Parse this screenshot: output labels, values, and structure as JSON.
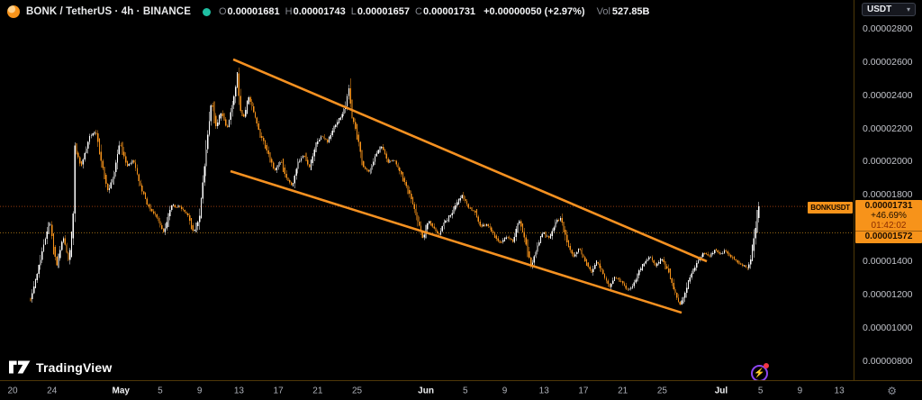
{
  "header": {
    "symbol_title": "BONK / TetherUS · 4h · BINANCE",
    "market_status": "open",
    "ohlc_fields": [
      {
        "label": "O",
        "value": "0.00001681"
      },
      {
        "label": "H",
        "value": "0.00001743"
      },
      {
        "label": "L",
        "value": "0.00001657"
      },
      {
        "label": "C",
        "value": "0.00001731"
      }
    ],
    "change_text": "+0.00000050 (+2.97%)",
    "volume_label": "Vol",
    "volume_value": "527.85B"
  },
  "price_scale": {
    "currency_button": "USDT",
    "chevron": "▾",
    "ticks": [
      {
        "label": "0.00002800",
        "p8": 2800
      },
      {
        "label": "0.00002600",
        "p8": 2600
      },
      {
        "label": "0.00002400",
        "p8": 2400
      },
      {
        "label": "0.00002200",
        "p8": 2200
      },
      {
        "label": "0.00002000",
        "p8": 2000
      },
      {
        "label": "0.00001800",
        "p8": 1800
      },
      {
        "label": "0.00001400",
        "p8": 1400
      },
      {
        "label": "0.00001200",
        "p8": 1200
      },
      {
        "label": "0.00001000",
        "p8": 1000
      },
      {
        "label": "0.00000800",
        "p8": 800
      }
    ],
    "settings_icon": "⚙"
  },
  "price_label": {
    "price": "0.00001731",
    "change_pct": "+46.69%",
    "countdown": "01:42:02",
    "alert_price": "0.00001572"
  },
  "symbol_tag": "BONKUSDT",
  "time_axis": {
    "origin_label": "Apr 20",
    "ticks": [
      {
        "label": "20",
        "day": 0,
        "major": false
      },
      {
        "label": "24",
        "day": 4,
        "major": false
      },
      {
        "label": "May",
        "day": 11,
        "major": true
      },
      {
        "label": "5",
        "day": 15,
        "major": false
      },
      {
        "label": "9",
        "day": 19,
        "major": false
      },
      {
        "label": "13",
        "day": 23,
        "major": false
      },
      {
        "label": "17",
        "day": 27,
        "major": false
      },
      {
        "label": "21",
        "day": 31,
        "major": false
      },
      {
        "label": "25",
        "day": 35,
        "major": false
      },
      {
        "label": "Jun",
        "day": 42,
        "major": true
      },
      {
        "label": "5",
        "day": 46,
        "major": false
      },
      {
        "label": "9",
        "day": 50,
        "major": false
      },
      {
        "label": "13",
        "day": 54,
        "major": false
      },
      {
        "label": "17",
        "day": 58,
        "major": false
      },
      {
        "label": "21",
        "day": 62,
        "major": false
      },
      {
        "label": "25",
        "day": 66,
        "major": false
      },
      {
        "label": "Jul",
        "day": 72,
        "major": true
      },
      {
        "label": "5",
        "day": 76,
        "major": false
      },
      {
        "label": "9",
        "day": 80,
        "major": false
      },
      {
        "label": "13",
        "day": 84,
        "major": false
      }
    ]
  },
  "logo": {
    "name": "TradingView"
  },
  "colors": {
    "up_candle": "#ffffff",
    "down_candle": "#f7931a",
    "trendline": "#f59121",
    "price_line_dotted": "#943a0c",
    "alert_line_dotted": "#9c6c14",
    "axis_border": "#4e3808",
    "label_bg": "#f7931a"
  },
  "chart_data": {
    "type": "candlestick",
    "symbol": "BONKUSDT",
    "exchange": "BINANCE",
    "interval": "4h",
    "price_unit": "1e-8 USDT (p8 1731 = 0.00001731)",
    "y_range_p8": [
      680,
      2830
    ],
    "x_unit": "days since Apr 20",
    "x_range_days": [
      0,
      87
    ],
    "ohlc_last": {
      "open": 1681,
      "high": 1743,
      "low": 1657,
      "close": 1731
    },
    "horizontal_lines_p8": [
      {
        "p8": 1731,
        "role": "current-price"
      },
      {
        "p8": 1572,
        "role": "alert-level"
      }
    ],
    "trendlines": [
      {
        "name": "channel-upper",
        "from": {
          "day": 22.42,
          "p8": 2616
        },
        "to": {
          "day": 70.54,
          "p8": 1400
        }
      },
      {
        "name": "channel-lower",
        "from": {
          "day": 22.14,
          "p8": 1943
        },
        "to": {
          "day": 67.98,
          "p8": 1091
        }
      }
    ],
    "path_pivots": [
      [
        1.83,
        1173
      ],
      [
        2.56,
        1346
      ],
      [
        3.75,
        1645
      ],
      [
        4.48,
        1373
      ],
      [
        5.12,
        1552
      ],
      [
        5.67,
        1411
      ],
      [
        6.13,
        1590
      ],
      [
        6.31,
        2095
      ],
      [
        6.95,
        1970
      ],
      [
        7.87,
        2160
      ],
      [
        8.51,
        2176
      ],
      [
        9.06,
        1986
      ],
      [
        9.7,
        1818
      ],
      [
        10.25,
        1916
      ],
      [
        10.89,
        2117
      ],
      [
        11.62,
        1970
      ],
      [
        12.26,
        2008
      ],
      [
        13.08,
        1834
      ],
      [
        13.82,
        1726
      ],
      [
        14.46,
        1683
      ],
      [
        15.37,
        1574
      ],
      [
        16.1,
        1737
      ],
      [
        17.02,
        1726
      ],
      [
        17.75,
        1683
      ],
      [
        18.39,
        1580
      ],
      [
        18.94,
        1645
      ],
      [
        19.58,
        2024
      ],
      [
        20.22,
        2366
      ],
      [
        20.68,
        2214
      ],
      [
        21.23,
        2296
      ],
      [
        21.78,
        2203
      ],
      [
        22.32,
        2333
      ],
      [
        22.69,
        2458
      ],
      [
        22.87,
        2551
      ],
      [
        23.06,
        2323
      ],
      [
        23.51,
        2268
      ],
      [
        23.97,
        2388
      ],
      [
        24.52,
        2296
      ],
      [
        25.07,
        2171
      ],
      [
        25.8,
        2079
      ],
      [
        26.62,
        1943
      ],
      [
        27.26,
        2008
      ],
      [
        27.81,
        1900
      ],
      [
        28.45,
        1856
      ],
      [
        29.0,
        1997
      ],
      [
        29.55,
        2041
      ],
      [
        30.19,
        1965
      ],
      [
        30.74,
        2089
      ],
      [
        31.38,
        2160
      ],
      [
        32.02,
        2117
      ],
      [
        32.66,
        2203
      ],
      [
        33.3,
        2268
      ],
      [
        33.85,
        2333
      ],
      [
        34.13,
        2458
      ],
      [
        34.49,
        2268
      ],
      [
        35.04,
        2160
      ],
      [
        35.59,
        1970
      ],
      [
        36.23,
        1932
      ],
      [
        36.87,
        2041
      ],
      [
        37.51,
        2095
      ],
      [
        38.15,
        1997
      ],
      [
        38.79,
        2008
      ],
      [
        39.43,
        1932
      ],
      [
        40.07,
        1845
      ],
      [
        40.62,
        1753
      ],
      [
        41.08,
        1661
      ],
      [
        41.72,
        1536
      ],
      [
        42.27,
        1645
      ],
      [
        42.73,
        1607
      ],
      [
        43.28,
        1552
      ],
      [
        43.82,
        1628
      ],
      [
        44.46,
        1672
      ],
      [
        45.01,
        1737
      ],
      [
        45.65,
        1797
      ],
      [
        46.29,
        1726
      ],
      [
        46.93,
        1699
      ],
      [
        47.58,
        1607
      ],
      [
        48.22,
        1628
      ],
      [
        48.86,
        1563
      ],
      [
        49.59,
        1509
      ],
      [
        50.23,
        1552
      ],
      [
        50.87,
        1520
      ],
      [
        51.42,
        1655
      ],
      [
        52.06,
        1531
      ],
      [
        52.7,
        1363
      ],
      [
        53.25,
        1482
      ],
      [
        53.89,
        1574
      ],
      [
        54.53,
        1536
      ],
      [
        55.17,
        1639
      ],
      [
        55.72,
        1661
      ],
      [
        56.36,
        1509
      ],
      [
        57.0,
        1428
      ],
      [
        57.55,
        1482
      ],
      [
        58.19,
        1401
      ],
      [
        58.83,
        1335
      ],
      [
        59.38,
        1401
      ],
      [
        60.02,
        1319
      ],
      [
        60.66,
        1249
      ],
      [
        61.21,
        1303
      ],
      [
        61.85,
        1276
      ],
      [
        62.49,
        1227
      ],
      [
        63.04,
        1249
      ],
      [
        63.68,
        1346
      ],
      [
        64.23,
        1390
      ],
      [
        64.78,
        1428
      ],
      [
        65.32,
        1373
      ],
      [
        65.97,
        1411
      ],
      [
        66.61,
        1346
      ],
      [
        67.15,
        1238
      ],
      [
        67.8,
        1140
      ],
      [
        68.25,
        1194
      ],
      [
        68.71,
        1292
      ],
      [
        69.17,
        1346
      ],
      [
        69.72,
        1411
      ],
      [
        70.27,
        1455
      ],
      [
        70.81,
        1428
      ],
      [
        71.36,
        1466
      ],
      [
        71.91,
        1444
      ],
      [
        72.46,
        1466
      ],
      [
        73.01,
        1428
      ],
      [
        73.56,
        1401
      ],
      [
        74.11,
        1373
      ],
      [
        74.66,
        1363
      ],
      [
        75.02,
        1411
      ],
      [
        75.3,
        1520
      ],
      [
        75.57,
        1634
      ],
      [
        75.85,
        1731
      ]
    ]
  }
}
